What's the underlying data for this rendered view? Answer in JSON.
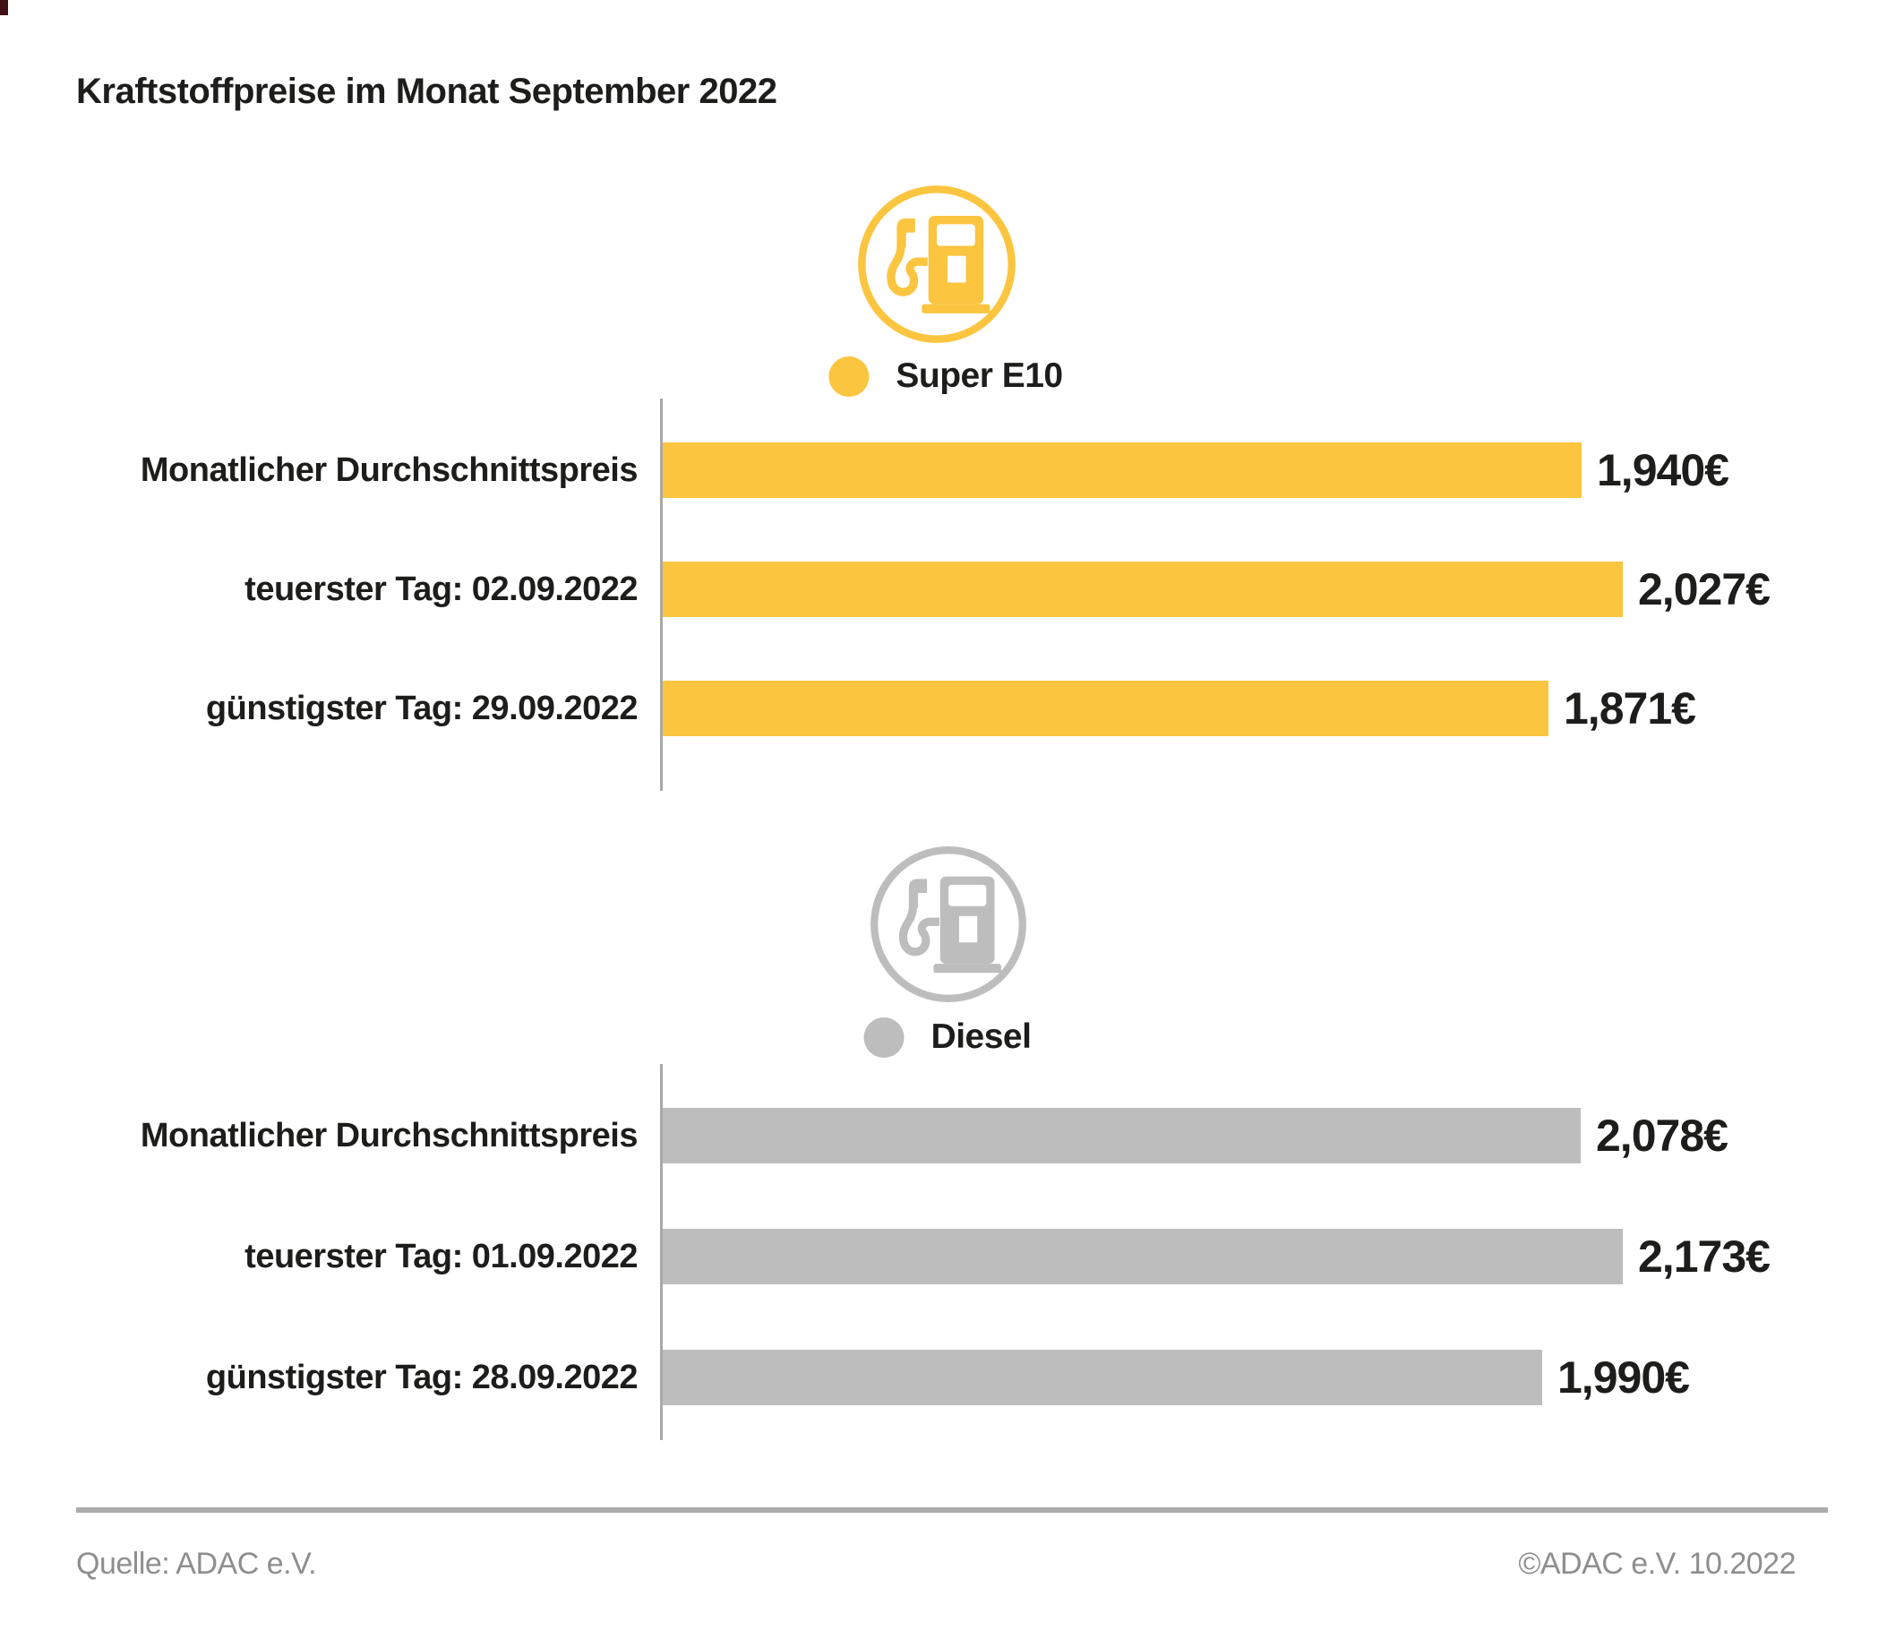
{
  "title": "Kraftstoffpreise im Monat September 2022",
  "colors": {
    "super_e10": "#FBC540",
    "diesel": "#BDBDBD",
    "axis": "#A8A8A8",
    "divider": "#ABABAB",
    "footer_text": "#8E8E8E",
    "text": "#1D1D1B"
  },
  "chart_data": [
    {
      "type": "bar",
      "orientation": "horizontal",
      "title": "Super E10",
      "icon": "fuel-pump-icon",
      "color": "#FBC540",
      "unit": "EUR/Liter",
      "categories": [
        "Monatlicher Durchschnittspreis",
        "teuerster Tag: 02.09.2022",
        "günstigster Tag: 29.09.2022"
      ],
      "values": [
        1.94,
        2.027,
        1.871
      ],
      "value_labels": [
        "1,940€",
        "2,027€",
        "1,871€"
      ],
      "xlim": [
        0,
        2.027
      ],
      "grid": false,
      "legend_position": "top-center"
    },
    {
      "type": "bar",
      "orientation": "horizontal",
      "title": "Diesel",
      "icon": "fuel-pump-icon",
      "color": "#BDBDBD",
      "unit": "EUR/Liter",
      "categories": [
        "Monatlicher Durchschnittspreis",
        "teuerster Tag: 01.09.2022",
        "günstigster Tag: 28.09.2022"
      ],
      "values": [
        2.078,
        2.173,
        1.99
      ],
      "value_labels": [
        "2,078€",
        "2,173€",
        "1,990€"
      ],
      "xlim": [
        0,
        2.173
      ],
      "grid": false,
      "legend_position": "top-center"
    }
  ],
  "footer": {
    "source": "Quelle: ADAC e.V.",
    "copyright": "©ADAC e.V. 10.2022"
  }
}
